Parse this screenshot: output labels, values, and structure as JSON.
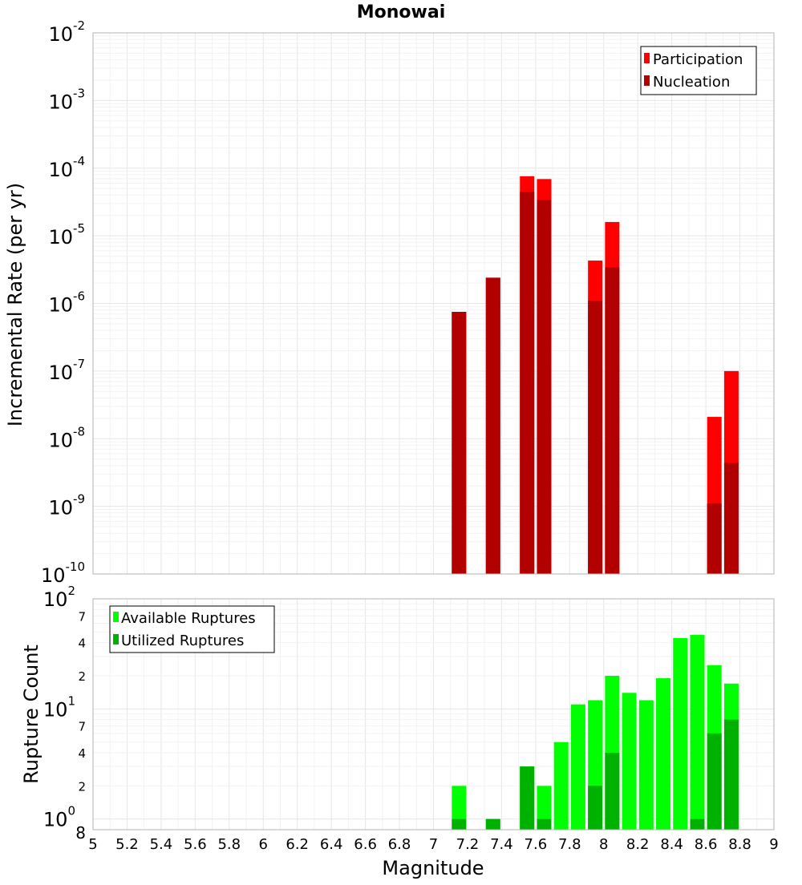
{
  "colors": {
    "participation": "#ff0000",
    "nucleation": "#b20000",
    "available": "#00ff00",
    "utilized": "#00b200"
  },
  "chart_data": [
    {
      "type": "bar",
      "title": "Monowai",
      "ylabel": "Incremental Rate (per yr)",
      "xlabel": "",
      "yscale": "log",
      "xlim": [
        5,
        9
      ],
      "ylim": [
        1e-10,
        0.01
      ],
      "ytick_exponents": [
        -10,
        -9,
        -8,
        -7,
        -6,
        -5,
        -4,
        -3,
        -2
      ],
      "grid": true,
      "legend_position": "top-right",
      "series": [
        {
          "name": "Participation",
          "color_key": "participation",
          "points": [
            {
              "x": 7.15,
              "y": 7.5e-07
            },
            {
              "x": 7.35,
              "y": 2.4e-06
            },
            {
              "x": 7.55,
              "y": 7.6e-05
            },
            {
              "x": 7.65,
              "y": 6.9e-05
            },
            {
              "x": 7.95,
              "y": 4.3e-06
            },
            {
              "x": 8.05,
              "y": 1.6e-05
            },
            {
              "x": 8.65,
              "y": 2.1e-08
            },
            {
              "x": 8.75,
              "y": 1e-07
            }
          ]
        },
        {
          "name": "Nucleation",
          "color_key": "nucleation",
          "points": [
            {
              "x": 7.15,
              "y": 7.5e-07
            },
            {
              "x": 7.35,
              "y": 2.4e-06
            },
            {
              "x": 7.55,
              "y": 4.5e-05
            },
            {
              "x": 7.65,
              "y": 3.4e-05
            },
            {
              "x": 7.95,
              "y": 1.1e-06
            },
            {
              "x": 8.05,
              "y": 3.4e-06
            },
            {
              "x": 8.65,
              "y": 1.1e-09
            },
            {
              "x": 8.75,
              "y": 4.4e-09
            }
          ]
        }
      ]
    },
    {
      "type": "bar",
      "title": "",
      "ylabel": "Rupture Count",
      "xlabel": "Magnitude",
      "yscale": "log",
      "xlim": [
        5,
        9
      ],
      "ylim": [
        0.8,
        100
      ],
      "xticks": [
        "5",
        "5.2",
        "5.4",
        "5.6",
        "5.8",
        "6",
        "6.2",
        "6.4",
        "6.6",
        "6.8",
        "7",
        "7.2",
        "7.4",
        "7.6",
        "7.8",
        "8",
        "8.2",
        "8.4",
        "8.6",
        "8.8",
        "9"
      ],
      "major_ticks": [
        {
          "value": 1,
          "base": "10",
          "exp": "0"
        },
        {
          "value": 10,
          "base": "10",
          "exp": "1"
        },
        {
          "value": 100,
          "base": "10",
          "exp": "2"
        }
      ],
      "minor_ticks": [
        {
          "value": 0.8,
          "label": "8"
        },
        {
          "value": 2,
          "label": "2"
        },
        {
          "value": 4,
          "label": "4"
        },
        {
          "value": 7,
          "label": "7"
        },
        {
          "value": 20,
          "label": "2"
        },
        {
          "value": 40,
          "label": "4"
        },
        {
          "value": 70,
          "label": "7"
        }
      ],
      "grid": true,
      "legend_position": "top-left",
      "series": [
        {
          "name": "Available Ruptures",
          "color_key": "available",
          "points": [
            {
              "x": 7.15,
              "y": 2
            },
            {
              "x": 7.35,
              "y": 1
            },
            {
              "x": 7.55,
              "y": 3
            },
            {
              "x": 7.65,
              "y": 2
            },
            {
              "x": 7.75,
              "y": 5
            },
            {
              "x": 7.85,
              "y": 11
            },
            {
              "x": 7.95,
              "y": 12
            },
            {
              "x": 8.05,
              "y": 20
            },
            {
              "x": 8.15,
              "y": 14
            },
            {
              "x": 8.25,
              "y": 12
            },
            {
              "x": 8.35,
              "y": 19
            },
            {
              "x": 8.45,
              "y": 44
            },
            {
              "x": 8.55,
              "y": 47
            },
            {
              "x": 8.65,
              "y": 25
            },
            {
              "x": 8.75,
              "y": 17
            }
          ]
        },
        {
          "name": "Utilized Ruptures",
          "color_key": "utilized",
          "points": [
            {
              "x": 7.15,
              "y": 1
            },
            {
              "x": 7.35,
              "y": 1
            },
            {
              "x": 7.55,
              "y": 3
            },
            {
              "x": 7.65,
              "y": 1
            },
            {
              "x": 7.95,
              "y": 2
            },
            {
              "x": 8.05,
              "y": 4
            },
            {
              "x": 8.55,
              "y": 1
            },
            {
              "x": 8.65,
              "y": 6
            },
            {
              "x": 8.75,
              "y": 8
            }
          ]
        }
      ]
    }
  ]
}
